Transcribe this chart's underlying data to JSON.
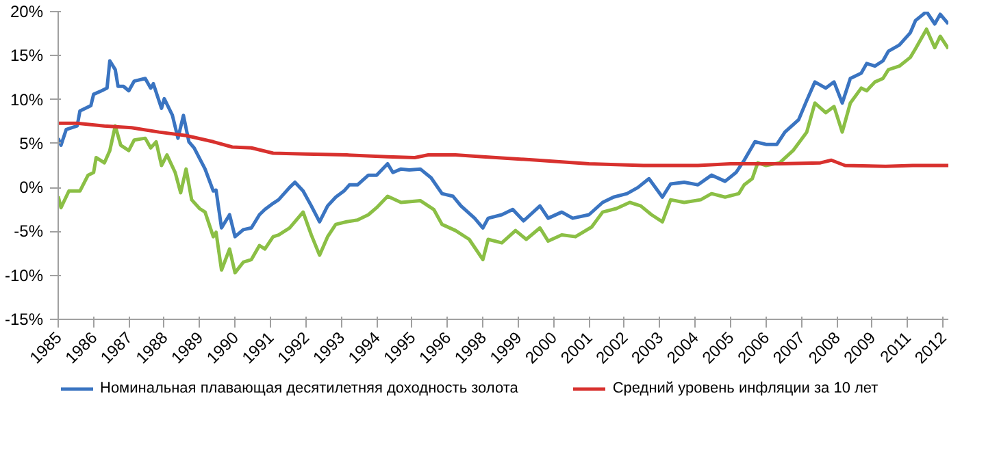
{
  "chart_data": {
    "type": "line",
    "xlim": [
      "1985-01",
      "2012-04"
    ],
    "xticks": [
      {
        "value": "1985-01",
        "label": "1985"
      },
      {
        "value": "1986-02",
        "label": "1986"
      },
      {
        "value": "1987-03",
        "label": "1987"
      },
      {
        "value": "1988-04",
        "label": "1988"
      },
      {
        "value": "1989-05",
        "label": "1989"
      },
      {
        "value": "1990-06",
        "label": "1990"
      },
      {
        "value": "1991-07",
        "label": "1991"
      },
      {
        "value": "1992-08",
        "label": "1992"
      },
      {
        "value": "1993-09",
        "label": "1993"
      },
      {
        "value": "1994-10",
        "label": "1994"
      },
      {
        "value": "1995-11",
        "label": "1995"
      },
      {
        "value": "1996-12",
        "label": "1996"
      },
      {
        "value": "1998-01",
        "label": "1998"
      },
      {
        "value": "1999-02",
        "label": "1999"
      },
      {
        "value": "2000-03",
        "label": "2000"
      },
      {
        "value": "2001-04",
        "label": "2001"
      },
      {
        "value": "2002-05",
        "label": "2002"
      },
      {
        "value": "2003-06",
        "label": "2003"
      },
      {
        "value": "2004-07",
        "label": "2004"
      },
      {
        "value": "2005-08",
        "label": "2005"
      },
      {
        "value": "2006-09",
        "label": "2006"
      },
      {
        "value": "2007-10",
        "label": "2007"
      },
      {
        "value": "2008-11",
        "label": "2008"
      },
      {
        "value": "2009-12",
        "label": "2009"
      },
      {
        "value": "2011-01",
        "label": "2011"
      },
      {
        "value": "2012-02",
        "label": "2012"
      }
    ],
    "ylim": [
      -15,
      20
    ],
    "yticks": [
      {
        "value": -15,
        "label": "-15%"
      },
      {
        "value": -10,
        "label": "-10%"
      },
      {
        "value": -5,
        "label": "-5%"
      },
      {
        "value": 0,
        "label": "0%"
      },
      {
        "value": 5,
        "label": "5%"
      },
      {
        "value": 10,
        "label": "10%"
      },
      {
        "value": 15,
        "label": "15%"
      },
      {
        "value": 20,
        "label": "20%"
      }
    ],
    "grid": false,
    "legend": "bottom",
    "marker": "none",
    "line_style": "solid",
    "series": [
      {
        "name": "Номинальная плавающая десятилетняя доходность золота",
        "color": "#3a74c1",
        "x": [
          "1985-01",
          "1985-02",
          "1985-04",
          "1985-08",
          "1985-09",
          "1986-01",
          "1986-02",
          "1986-05",
          "1986-07",
          "1986-08",
          "1986-10",
          "1986-11",
          "1987-01",
          "1987-03",
          "1987-05",
          "1987-09",
          "1987-11",
          "1987-12",
          "1988-03",
          "1988-04",
          "1988-07",
          "1988-09",
          "1988-11",
          "1989-01",
          "1989-03",
          "1989-07",
          "1989-10",
          "1989-11",
          "1990-01",
          "1990-04",
          "1990-06",
          "1990-09",
          "1990-12",
          "1991-03",
          "1991-05",
          "1991-08",
          "1991-10",
          "1992-02",
          "1992-04",
          "1992-07",
          "1992-10",
          "1993-01",
          "1993-04",
          "1993-07",
          "1993-10",
          "1993-12",
          "1994-03",
          "1994-07",
          "1994-10",
          "1995-02",
          "1995-04",
          "1995-07",
          "1995-10",
          "1996-02",
          "1996-06",
          "1996-10",
          "1997-02",
          "1997-05",
          "1997-10",
          "1998-01",
          "1998-03",
          "1998-08",
          "1998-12",
          "1999-04",
          "1999-10",
          "2000-01",
          "2000-06",
          "2000-10",
          "2001-04",
          "2001-09",
          "2002-01",
          "2002-06",
          "2002-10",
          "2003-02",
          "2003-07",
          "2003-10",
          "2004-03",
          "2004-08",
          "2005-01",
          "2005-06",
          "2005-10",
          "2006-01",
          "2006-05",
          "2006-09",
          "2007-01",
          "2007-04",
          "2007-09",
          "2007-12",
          "2008-03",
          "2008-07",
          "2008-10",
          "2009-01",
          "2009-04",
          "2009-08",
          "2009-10",
          "2010-01",
          "2010-04",
          "2010-06",
          "2010-10",
          "2011-02",
          "2011-04",
          "2011-08",
          "2011-11",
          "2012-01",
          "2012-04"
        ],
        "values": [
          5.6,
          4.8,
          6.6,
          7.0,
          8.7,
          9.3,
          10.6,
          11,
          11.3,
          14.4,
          13.4,
          11.5,
          11.5,
          11,
          12.1,
          12.4,
          11.3,
          11.8,
          9,
          10.1,
          8.2,
          5.6,
          8.2,
          5.2,
          4.5,
          2.1,
          -0.4,
          -0.3,
          -4.6,
          -3.1,
          -5.6,
          -4.8,
          -4.6,
          -3.1,
          -2.5,
          -1.8,
          -1.4,
          0,
          0.6,
          -0.4,
          -2.1,
          -3.9,
          -2.1,
          -1.1,
          -0.4,
          0.3,
          0.3,
          1.4,
          1.4,
          2.7,
          1.7,
          2.1,
          2.0,
          2.1,
          1.1,
          -0.7,
          -1.0,
          -2.1,
          -3.5,
          -4.6,
          -3.5,
          -3.1,
          -2.5,
          -3.8,
          -2.1,
          -3.5,
          -2.8,
          -3.5,
          -3.1,
          -1.7,
          -1.1,
          -0.7,
          0,
          1.0,
          -1.1,
          0.4,
          0.6,
          0.3,
          1.4,
          0.7,
          1.7,
          3.1,
          5.2,
          4.9,
          4.9,
          6.3,
          7.7,
          9.9,
          12,
          11.3,
          12,
          9.6,
          12.4,
          13,
          14.1,
          13.8,
          14.4,
          15.5,
          16.2,
          17.6,
          19,
          20,
          18.6,
          19.7,
          18.6
        ]
      },
      {
        "color": "#8bbf45",
        "x": [
          "1985-01",
          "1985-02",
          "1985-05",
          "1985-09",
          "1985-12",
          "1986-02",
          "1986-03",
          "1986-06",
          "1986-08",
          "1986-10",
          "1986-12",
          "1987-03",
          "1987-05",
          "1987-09",
          "1987-11",
          "1988-01",
          "1988-03",
          "1988-05",
          "1988-08",
          "1988-10",
          "1988-12",
          "1989-02",
          "1989-05",
          "1989-07",
          "1989-10",
          "1989-11",
          "1990-01",
          "1990-04",
          "1990-06",
          "1990-09",
          "1990-12",
          "1991-03",
          "1991-05",
          "1991-08",
          "1991-10",
          "1992-02",
          "1992-07",
          "1992-10",
          "1993-01",
          "1993-04",
          "1993-07",
          "1993-11",
          "1994-03",
          "1994-07",
          "1994-10",
          "1995-02",
          "1995-07",
          "1996-02",
          "1996-07",
          "1996-10",
          "1997-03",
          "1997-08",
          "1998-01",
          "1998-03",
          "1998-08",
          "1999-01",
          "1999-05",
          "1999-10",
          "2000-01",
          "2000-06",
          "2000-11",
          "2001-05",
          "2001-09",
          "2002-02",
          "2002-07",
          "2002-11",
          "2003-03",
          "2003-07",
          "2003-10",
          "2004-03",
          "2004-09",
          "2005-01",
          "2005-06",
          "2005-11",
          "2006-01",
          "2006-04",
          "2006-06",
          "2006-09",
          "2007-02",
          "2007-07",
          "2007-12",
          "2008-03",
          "2008-07",
          "2008-10",
          "2009-01",
          "2009-04",
          "2009-08",
          "2009-10",
          "2010-01",
          "2010-04",
          "2010-06",
          "2010-10",
          "2011-02",
          "2011-04",
          "2011-08",
          "2011-11",
          "2012-01",
          "2012-04"
        ],
        "values": [
          -1,
          -2.3,
          -0.4,
          -0.4,
          1.4,
          1.7,
          3.4,
          2.8,
          4.2,
          7.0,
          4.8,
          4.2,
          5.4,
          5.6,
          4.5,
          5.2,
          2.5,
          3.7,
          1.7,
          -0.6,
          2.1,
          -1.4,
          -2.4,
          -2.8,
          -5.6,
          -5.1,
          -9.4,
          -7.0,
          -9.7,
          -8.5,
          -8.2,
          -6.6,
          -7,
          -5.6,
          -5.4,
          -4.6,
          -2.8,
          -5.4,
          -7.7,
          -5.6,
          -4.2,
          -3.9,
          -3.7,
          -3.1,
          -2.3,
          -1.0,
          -1.7,
          -1.5,
          -2.5,
          -4.2,
          -4.9,
          -5.9,
          -8.2,
          -5.9,
          -6.3,
          -4.9,
          -5.9,
          -4.6,
          -6.1,
          -5.4,
          -5.6,
          -4.5,
          -2.8,
          -2.4,
          -1.7,
          -2.1,
          -3.1,
          -3.9,
          -1.4,
          -1.7,
          -1.4,
          -0.7,
          -1.1,
          -0.7,
          0.3,
          1.0,
          2.8,
          2.5,
          2.8,
          4.2,
          6.3,
          9.6,
          8.5,
          9.2,
          6.3,
          9.6,
          11.3,
          11,
          12,
          12.4,
          13.4,
          13.8,
          14.8,
          15.8,
          18,
          15.9,
          17.2,
          15.8
        ]
      },
      {
        "name": "Средний уровень инфляции за 10 лет",
        "color": "#d8312e",
        "x": [
          "1985-01",
          "1985-08",
          "1986-06",
          "1987-04",
          "1988-02",
          "1988-12",
          "1989-10",
          "1990-05",
          "1990-12",
          "1991-08",
          "1992-08",
          "1993-11",
          "1995-02",
          "1995-12",
          "1996-05",
          "1997-03",
          "1998-01",
          "1999-09",
          "2001-04",
          "2002-12",
          "2004-08",
          "2005-08",
          "2007-02",
          "2008-05",
          "2008-09",
          "2009-02",
          "2010-05",
          "2011-03",
          "2012-04"
        ],
        "values": [
          7.3,
          7.3,
          7.0,
          6.8,
          6.3,
          5.9,
          5.2,
          4.6,
          4.5,
          3.9,
          3.8,
          3.7,
          3.5,
          3.4,
          3.7,
          3.7,
          3.5,
          3.1,
          2.7,
          2.5,
          2.5,
          2.7,
          2.7,
          2.8,
          3.1,
          2.5,
          2.4,
          2.5,
          2.5
        ]
      }
    ]
  }
}
